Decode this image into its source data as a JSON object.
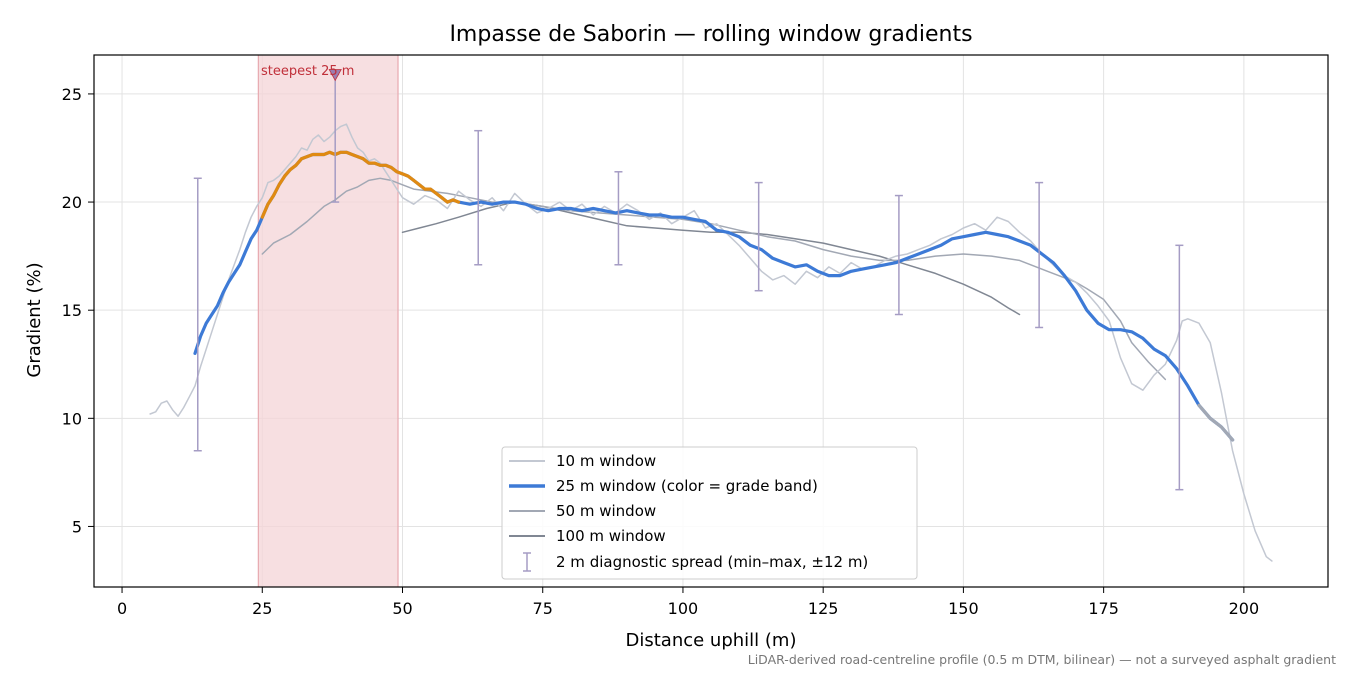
{
  "chart_data": {
    "type": "line",
    "title": "Impasse de Saborin — rolling window gradients",
    "xlabel": "Distance uphill (m)",
    "ylabel": "Gradient (%)",
    "xlim": [
      -5,
      215
    ],
    "ylim": [
      2.2,
      26.8
    ],
    "xticks": [
      0,
      25,
      50,
      75,
      100,
      125,
      150,
      175,
      200
    ],
    "yticks": [
      5,
      10,
      15,
      20,
      25
    ],
    "grid": true,
    "legend_position": "lower-center",
    "footnote": "LiDAR-derived road-centreline profile (0.5 m DTM, bilinear) — not a surveyed asphalt gradient",
    "steepest": {
      "label": "steepest 25 m",
      "x_start": 24.3,
      "x_end": 49.2,
      "marker_x": 38,
      "marker_y": 25.9,
      "color": "#f4d4d7",
      "label_color": "#c0303a"
    },
    "series": [
      {
        "name": "10 m window",
        "color": "#c3c8d2",
        "x": [
          5,
          6,
          7,
          8,
          9,
          10,
          11,
          12,
          13,
          14,
          15,
          16,
          17,
          18,
          19,
          20,
          21,
          22,
          23,
          24,
          25,
          26,
          27,
          28,
          29,
          30,
          31,
          32,
          33,
          34,
          35,
          36,
          37,
          38,
          39,
          40,
          41,
          42,
          43,
          44,
          45,
          46,
          47,
          48,
          49,
          50,
          52,
          54,
          56,
          58,
          60,
          62,
          64,
          66,
          68,
          70,
          72,
          74,
          76,
          78,
          80,
          82,
          84,
          86,
          88,
          90,
          92,
          94,
          96,
          98,
          100,
          102,
          104,
          106,
          108,
          110,
          112,
          114,
          116,
          118,
          120,
          122,
          124,
          126,
          128,
          130,
          132,
          134,
          136,
          138,
          140,
          142,
          144,
          146,
          148,
          150,
          152,
          154,
          156,
          158,
          160,
          162,
          164,
          166,
          168,
          170,
          172,
          174,
          176,
          178,
          180,
          182,
          184,
          186,
          188,
          189,
          190,
          192,
          194,
          196,
          198,
          200,
          202,
          204,
          205
        ],
        "y": [
          10.2,
          10.3,
          10.7,
          10.8,
          10.4,
          10.1,
          10.5,
          11.0,
          11.5,
          12.4,
          13.2,
          14.0,
          14.8,
          15.6,
          16.4,
          17.1,
          17.8,
          18.6,
          19.3,
          19.8,
          20.2,
          20.9,
          21.0,
          21.2,
          21.5,
          21.8,
          22.1,
          22.5,
          22.4,
          22.9,
          23.1,
          22.8,
          23.0,
          23.3,
          23.5,
          23.6,
          23.0,
          22.5,
          22.3,
          21.9,
          22.0,
          21.8,
          21.4,
          21.0,
          20.6,
          20.2,
          19.9,
          20.3,
          20.1,
          19.7,
          20.5,
          20.1,
          19.8,
          20.2,
          19.6,
          20.4,
          19.9,
          19.5,
          19.7,
          20.0,
          19.6,
          19.9,
          19.4,
          19.8,
          19.5,
          19.9,
          19.6,
          19.2,
          19.5,
          19.0,
          19.3,
          19.6,
          18.8,
          19.0,
          18.5,
          18.0,
          17.4,
          16.8,
          16.4,
          16.6,
          16.2,
          16.8,
          16.5,
          17.0,
          16.7,
          17.2,
          16.9,
          17.0,
          17.3,
          17.5,
          17.6,
          17.8,
          18.0,
          18.3,
          18.5,
          18.8,
          19.0,
          18.7,
          19.3,
          19.1,
          18.6,
          18.2,
          17.6,
          17.1,
          16.6,
          16.3,
          15.8,
          15.2,
          14.5,
          12.8,
          11.6,
          11.3,
          12.0,
          12.5,
          13.6,
          14.5,
          14.6,
          14.4,
          13.5,
          11.2,
          8.5,
          6.5,
          4.8,
          3.6,
          3.4
        ]
      },
      {
        "name": "25 m window (color = grade band)",
        "color": "#3d7ad6",
        "steep_color": "#e08a12",
        "x": [
          13,
          14,
          15,
          16,
          17,
          18,
          19,
          20,
          21,
          22,
          23,
          24,
          25,
          26,
          27,
          28,
          29,
          30,
          31,
          32,
          33,
          34,
          35,
          36,
          37,
          38,
          39,
          40,
          41,
          42,
          43,
          44,
          45,
          46,
          47,
          48,
          49,
          50,
          51,
          52,
          53,
          54,
          55,
          56,
          57,
          58,
          59,
          60,
          62,
          64,
          66,
          68,
          70,
          72,
          74,
          76,
          78,
          80,
          82,
          84,
          86,
          88,
          90,
          92,
          94,
          96,
          98,
          100,
          102,
          104,
          106,
          108,
          110,
          112,
          114,
          116,
          118,
          120,
          122,
          124,
          126,
          128,
          130,
          132,
          134,
          136,
          138,
          140,
          142,
          144,
          146,
          148,
          150,
          152,
          154,
          156,
          158,
          160,
          162,
          164,
          166,
          168,
          170,
          172,
          174,
          176,
          178,
          180,
          182,
          184,
          186,
          188,
          190,
          192,
          194,
          196,
          198
        ],
        "y": [
          13.0,
          13.8,
          14.4,
          14.8,
          15.2,
          15.8,
          16.3,
          16.7,
          17.1,
          17.7,
          18.3,
          18.7,
          19.3,
          19.9,
          20.3,
          20.8,
          21.2,
          21.5,
          21.7,
          22.0,
          22.1,
          22.2,
          22.2,
          22.2,
          22.3,
          22.2,
          22.3,
          22.3,
          22.2,
          22.1,
          22.0,
          21.8,
          21.8,
          21.7,
          21.7,
          21.6,
          21.4,
          21.3,
          21.2,
          21.0,
          20.8,
          20.6,
          20.6,
          20.4,
          20.2,
          20.0,
          20.1,
          20.0,
          19.9,
          20.0,
          19.9,
          20.0,
          20.0,
          19.9,
          19.7,
          19.6,
          19.7,
          19.7,
          19.6,
          19.7,
          19.6,
          19.5,
          19.6,
          19.5,
          19.4,
          19.4,
          19.3,
          19.3,
          19.2,
          19.1,
          18.7,
          18.6,
          18.4,
          18.0,
          17.8,
          17.4,
          17.2,
          17.0,
          17.1,
          16.8,
          16.6,
          16.6,
          16.8,
          16.9,
          17.0,
          17.1,
          17.2,
          17.4,
          17.6,
          17.8,
          18.0,
          18.3,
          18.4,
          18.5,
          18.6,
          18.5,
          18.4,
          18.2,
          18.0,
          17.6,
          17.2,
          16.6,
          15.9,
          15.0,
          14.4,
          14.1,
          14.1,
          14.0,
          13.7,
          13.2,
          12.9,
          12.3,
          11.5,
          10.6,
          10.0,
          9.6,
          9.0
        ]
      },
      {
        "name": "50 m window",
        "color": "#a2a8b4",
        "x": [
          25,
          27,
          30,
          33,
          36,
          38,
          40,
          42,
          44,
          46,
          48,
          50,
          52,
          55,
          58,
          62,
          66,
          70,
          75,
          80,
          85,
          90,
          95,
          100,
          105,
          110,
          115,
          120,
          125,
          130,
          135,
          140,
          145,
          150,
          155,
          160,
          165,
          170,
          172,
          175,
          178,
          180,
          183,
          186
        ],
        "y": [
          17.6,
          18.1,
          18.5,
          19.1,
          19.8,
          20.1,
          20.5,
          20.7,
          21.0,
          21.1,
          21.0,
          20.8,
          20.6,
          20.5,
          20.4,
          20.2,
          20.0,
          20.0,
          19.8,
          19.6,
          19.5,
          19.4,
          19.3,
          19.2,
          19.0,
          18.7,
          18.4,
          18.2,
          17.8,
          17.5,
          17.3,
          17.3,
          17.5,
          17.6,
          17.5,
          17.3,
          16.8,
          16.3,
          16.0,
          15.5,
          14.5,
          13.5,
          12.6,
          11.8
        ]
      },
      {
        "name": "100 m window",
        "color": "#808793",
        "x": [
          50,
          53,
          56,
          60,
          65,
          70,
          75,
          80,
          85,
          90,
          95,
          100,
          105,
          110,
          115,
          120,
          125,
          130,
          135,
          140,
          145,
          150,
          155,
          158,
          160
        ],
        "y": [
          18.6,
          18.8,
          19.0,
          19.3,
          19.7,
          20.0,
          19.8,
          19.5,
          19.2,
          18.9,
          18.8,
          18.7,
          18.6,
          18.6,
          18.5,
          18.3,
          18.1,
          17.8,
          17.5,
          17.1,
          16.7,
          16.2,
          15.6,
          15.1,
          14.8
        ]
      }
    ],
    "spread": {
      "name": "2 m diagnostic spread (min–max, ±12 m)",
      "color": "#a59cc4",
      "points": [
        {
          "x": 13.5,
          "min": 8.5,
          "max": 21.1
        },
        {
          "x": 38,
          "min": 20.0,
          "max": 25.9
        },
        {
          "x": 63.5,
          "min": 17.1,
          "max": 23.3
        },
        {
          "x": 88.5,
          "min": 17.1,
          "max": 21.4
        },
        {
          "x": 113.5,
          "min": 15.9,
          "max": 20.9
        },
        {
          "x": 138.5,
          "min": 14.8,
          "max": 20.3
        },
        {
          "x": 163.5,
          "min": 14.2,
          "max": 20.9
        },
        {
          "x": 188.5,
          "min": 6.7,
          "max": 18.0
        }
      ]
    }
  }
}
